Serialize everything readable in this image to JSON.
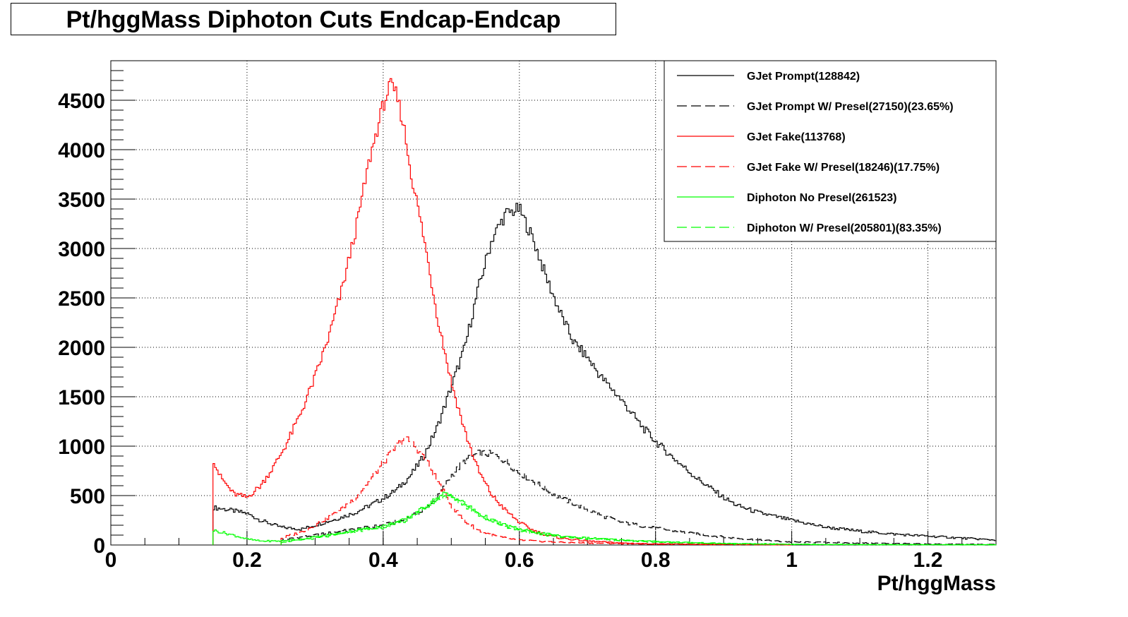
{
  "chart_data": {
    "type": "line",
    "title": "Pt/hggMass Diphoton Cuts Endcap-Endcap",
    "xlabel": "Pt/hggMass",
    "ylabel": "",
    "xlim": [
      0,
      1.3
    ],
    "ylim": [
      0,
      4900
    ],
    "grid": true,
    "legend_position": "top-right",
    "x_ticks": [
      {
        "value": 0,
        "label": "0"
      },
      {
        "value": 0.2,
        "label": "0.2"
      },
      {
        "value": 0.4,
        "label": "0.4"
      },
      {
        "value": 0.6,
        "label": "0.6"
      },
      {
        "value": 0.8,
        "label": "0.8"
      },
      {
        "value": 1.0,
        "label": "1"
      },
      {
        "value": 1.2,
        "label": "1.2"
      }
    ],
    "y_ticks": [
      {
        "value": 0,
        "label": "0"
      },
      {
        "value": 500,
        "label": "500"
      },
      {
        "value": 1000,
        "label": "1000"
      },
      {
        "value": 1500,
        "label": "1500"
      },
      {
        "value": 2000,
        "label": "2000"
      },
      {
        "value": 2500,
        "label": "2500"
      },
      {
        "value": 3000,
        "label": "3000"
      },
      {
        "value": 3500,
        "label": "3500"
      },
      {
        "value": 4000,
        "label": "4000"
      },
      {
        "value": 4500,
        "label": "4500"
      }
    ],
    "series": [
      {
        "name": "GJet Prompt(128842)",
        "color": "#000000",
        "dash": false,
        "points": [
          [
            0.15,
            380
          ],
          [
            0.17,
            360
          ],
          [
            0.2,
            320
          ],
          [
            0.22,
            250
          ],
          [
            0.25,
            180
          ],
          [
            0.28,
            160
          ],
          [
            0.3,
            200
          ],
          [
            0.33,
            260
          ],
          [
            0.36,
            330
          ],
          [
            0.38,
            400
          ],
          [
            0.4,
            470
          ],
          [
            0.42,
            560
          ],
          [
            0.44,
            700
          ],
          [
            0.46,
            900
          ],
          [
            0.48,
            1200
          ],
          [
            0.5,
            1600
          ],
          [
            0.52,
            2000
          ],
          [
            0.54,
            2600
          ],
          [
            0.56,
            3100
          ],
          [
            0.58,
            3350
          ],
          [
            0.6,
            3400
          ],
          [
            0.62,
            3100
          ],
          [
            0.64,
            2700
          ],
          [
            0.66,
            2350
          ],
          [
            0.68,
            2050
          ],
          [
            0.7,
            1900
          ],
          [
            0.72,
            1700
          ],
          [
            0.74,
            1550
          ],
          [
            0.76,
            1380
          ],
          [
            0.78,
            1200
          ],
          [
            0.8,
            1050
          ],
          [
            0.82,
            920
          ],
          [
            0.84,
            800
          ],
          [
            0.86,
            680
          ],
          [
            0.88,
            580
          ],
          [
            0.9,
            480
          ],
          [
            0.92,
            400
          ],
          [
            0.95,
            330
          ],
          [
            1.0,
            250
          ],
          [
            1.05,
            180
          ],
          [
            1.1,
            140
          ],
          [
            1.15,
            110
          ],
          [
            1.2,
            90
          ],
          [
            1.25,
            70
          ],
          [
            1.3,
            50
          ]
        ]
      },
      {
        "name": "GJet Prompt W/ Presel(27150)(23.65%)",
        "color": "#000000",
        "dash": true,
        "points": [
          [
            0.25,
            50
          ],
          [
            0.28,
            80
          ],
          [
            0.3,
            100
          ],
          [
            0.33,
            130
          ],
          [
            0.36,
            160
          ],
          [
            0.4,
            200
          ],
          [
            0.43,
            250
          ],
          [
            0.46,
            350
          ],
          [
            0.48,
            480
          ],
          [
            0.5,
            700
          ],
          [
            0.52,
            850
          ],
          [
            0.54,
            930
          ],
          [
            0.56,
            920
          ],
          [
            0.58,
            850
          ],
          [
            0.6,
            730
          ],
          [
            0.62,
            650
          ],
          [
            0.64,
            560
          ],
          [
            0.66,
            480
          ],
          [
            0.68,
            420
          ],
          [
            0.7,
            360
          ],
          [
            0.72,
            300
          ],
          [
            0.75,
            230
          ],
          [
            0.8,
            170
          ],
          [
            0.85,
            120
          ],
          [
            0.9,
            80
          ],
          [
            0.95,
            50
          ],
          [
            1.0,
            30
          ],
          [
            1.1,
            20
          ],
          [
            1.2,
            10
          ],
          [
            1.3,
            5
          ]
        ]
      },
      {
        "name": "GJet Fake(113768)",
        "color": "#ff0000",
        "dash": false,
        "points": [
          [
            0.15,
            880
          ],
          [
            0.16,
            700
          ],
          [
            0.18,
            520
          ],
          [
            0.2,
            480
          ],
          [
            0.22,
            600
          ],
          [
            0.24,
            800
          ],
          [
            0.26,
            1050
          ],
          [
            0.28,
            1350
          ],
          [
            0.3,
            1700
          ],
          [
            0.32,
            2100
          ],
          [
            0.34,
            2600
          ],
          [
            0.36,
            3200
          ],
          [
            0.38,
            3900
          ],
          [
            0.4,
            4450
          ],
          [
            0.41,
            4650
          ],
          [
            0.42,
            4550
          ],
          [
            0.43,
            4250
          ],
          [
            0.44,
            3800
          ],
          [
            0.46,
            3100
          ],
          [
            0.48,
            2300
          ],
          [
            0.5,
            1650
          ],
          [
            0.52,
            1150
          ],
          [
            0.54,
            750
          ],
          [
            0.56,
            500
          ],
          [
            0.58,
            350
          ],
          [
            0.6,
            230
          ],
          [
            0.62,
            150
          ],
          [
            0.64,
            100
          ],
          [
            0.66,
            70
          ],
          [
            0.7,
            40
          ],
          [
            0.75,
            20
          ],
          [
            0.8,
            10
          ],
          [
            0.9,
            5
          ],
          [
            1.0,
            2
          ]
        ]
      },
      {
        "name": "GJet Fake W/ Presel(18246)(17.75%)",
        "color": "#ff0000",
        "dash": true,
        "points": [
          [
            0.25,
            70
          ],
          [
            0.28,
            130
          ],
          [
            0.3,
            200
          ],
          [
            0.33,
            320
          ],
          [
            0.36,
            480
          ],
          [
            0.38,
            650
          ],
          [
            0.4,
            830
          ],
          [
            0.42,
            1000
          ],
          [
            0.43,
            1080
          ],
          [
            0.44,
            1050
          ],
          [
            0.46,
            900
          ],
          [
            0.48,
            650
          ],
          [
            0.5,
            400
          ],
          [
            0.52,
            240
          ],
          [
            0.54,
            150
          ],
          [
            0.56,
            100
          ],
          [
            0.58,
            70
          ],
          [
            0.6,
            50
          ],
          [
            0.65,
            30
          ],
          [
            0.7,
            20
          ],
          [
            0.8,
            10
          ],
          [
            0.9,
            5
          ]
        ]
      },
      {
        "name": "Diphoton No Presel(261523)",
        "color": "#00ff00",
        "dash": false,
        "points": [
          [
            0.15,
            150
          ],
          [
            0.18,
            100
          ],
          [
            0.2,
            60
          ],
          [
            0.22,
            40
          ],
          [
            0.25,
            40
          ],
          [
            0.28,
            60
          ],
          [
            0.3,
            80
          ],
          [
            0.33,
            110
          ],
          [
            0.36,
            150
          ],
          [
            0.4,
            190
          ],
          [
            0.43,
            250
          ],
          [
            0.45,
            330
          ],
          [
            0.47,
            430
          ],
          [
            0.49,
            520
          ],
          [
            0.5,
            500
          ],
          [
            0.52,
            420
          ],
          [
            0.54,
            320
          ],
          [
            0.56,
            250
          ],
          [
            0.58,
            200
          ],
          [
            0.6,
            160
          ],
          [
            0.63,
            120
          ],
          [
            0.66,
            90
          ],
          [
            0.7,
            70
          ],
          [
            0.75,
            50
          ],
          [
            0.8,
            35
          ],
          [
            0.85,
            25
          ],
          [
            0.9,
            15
          ],
          [
            1.0,
            8
          ],
          [
            1.1,
            4
          ],
          [
            1.3,
            2
          ]
        ]
      },
      {
        "name": "Diphoton W/ Presel(205801)(83.35%)",
        "color": "#00ff00",
        "dash": true,
        "points": [
          [
            0.25,
            30
          ],
          [
            0.28,
            50
          ],
          [
            0.3,
            70
          ],
          [
            0.33,
            100
          ],
          [
            0.36,
            140
          ],
          [
            0.4,
            180
          ],
          [
            0.43,
            240
          ],
          [
            0.45,
            320
          ],
          [
            0.47,
            420
          ],
          [
            0.49,
            500
          ],
          [
            0.5,
            480
          ],
          [
            0.52,
            400
          ],
          [
            0.54,
            310
          ],
          [
            0.56,
            240
          ],
          [
            0.58,
            190
          ],
          [
            0.6,
            150
          ],
          [
            0.63,
            110
          ],
          [
            0.66,
            85
          ],
          [
            0.7,
            65
          ],
          [
            0.75,
            45
          ],
          [
            0.8,
            30
          ],
          [
            0.85,
            20
          ],
          [
            0.9,
            12
          ],
          [
            1.0,
            6
          ],
          [
            1.1,
            3
          ],
          [
            1.3,
            1
          ]
        ]
      }
    ]
  }
}
